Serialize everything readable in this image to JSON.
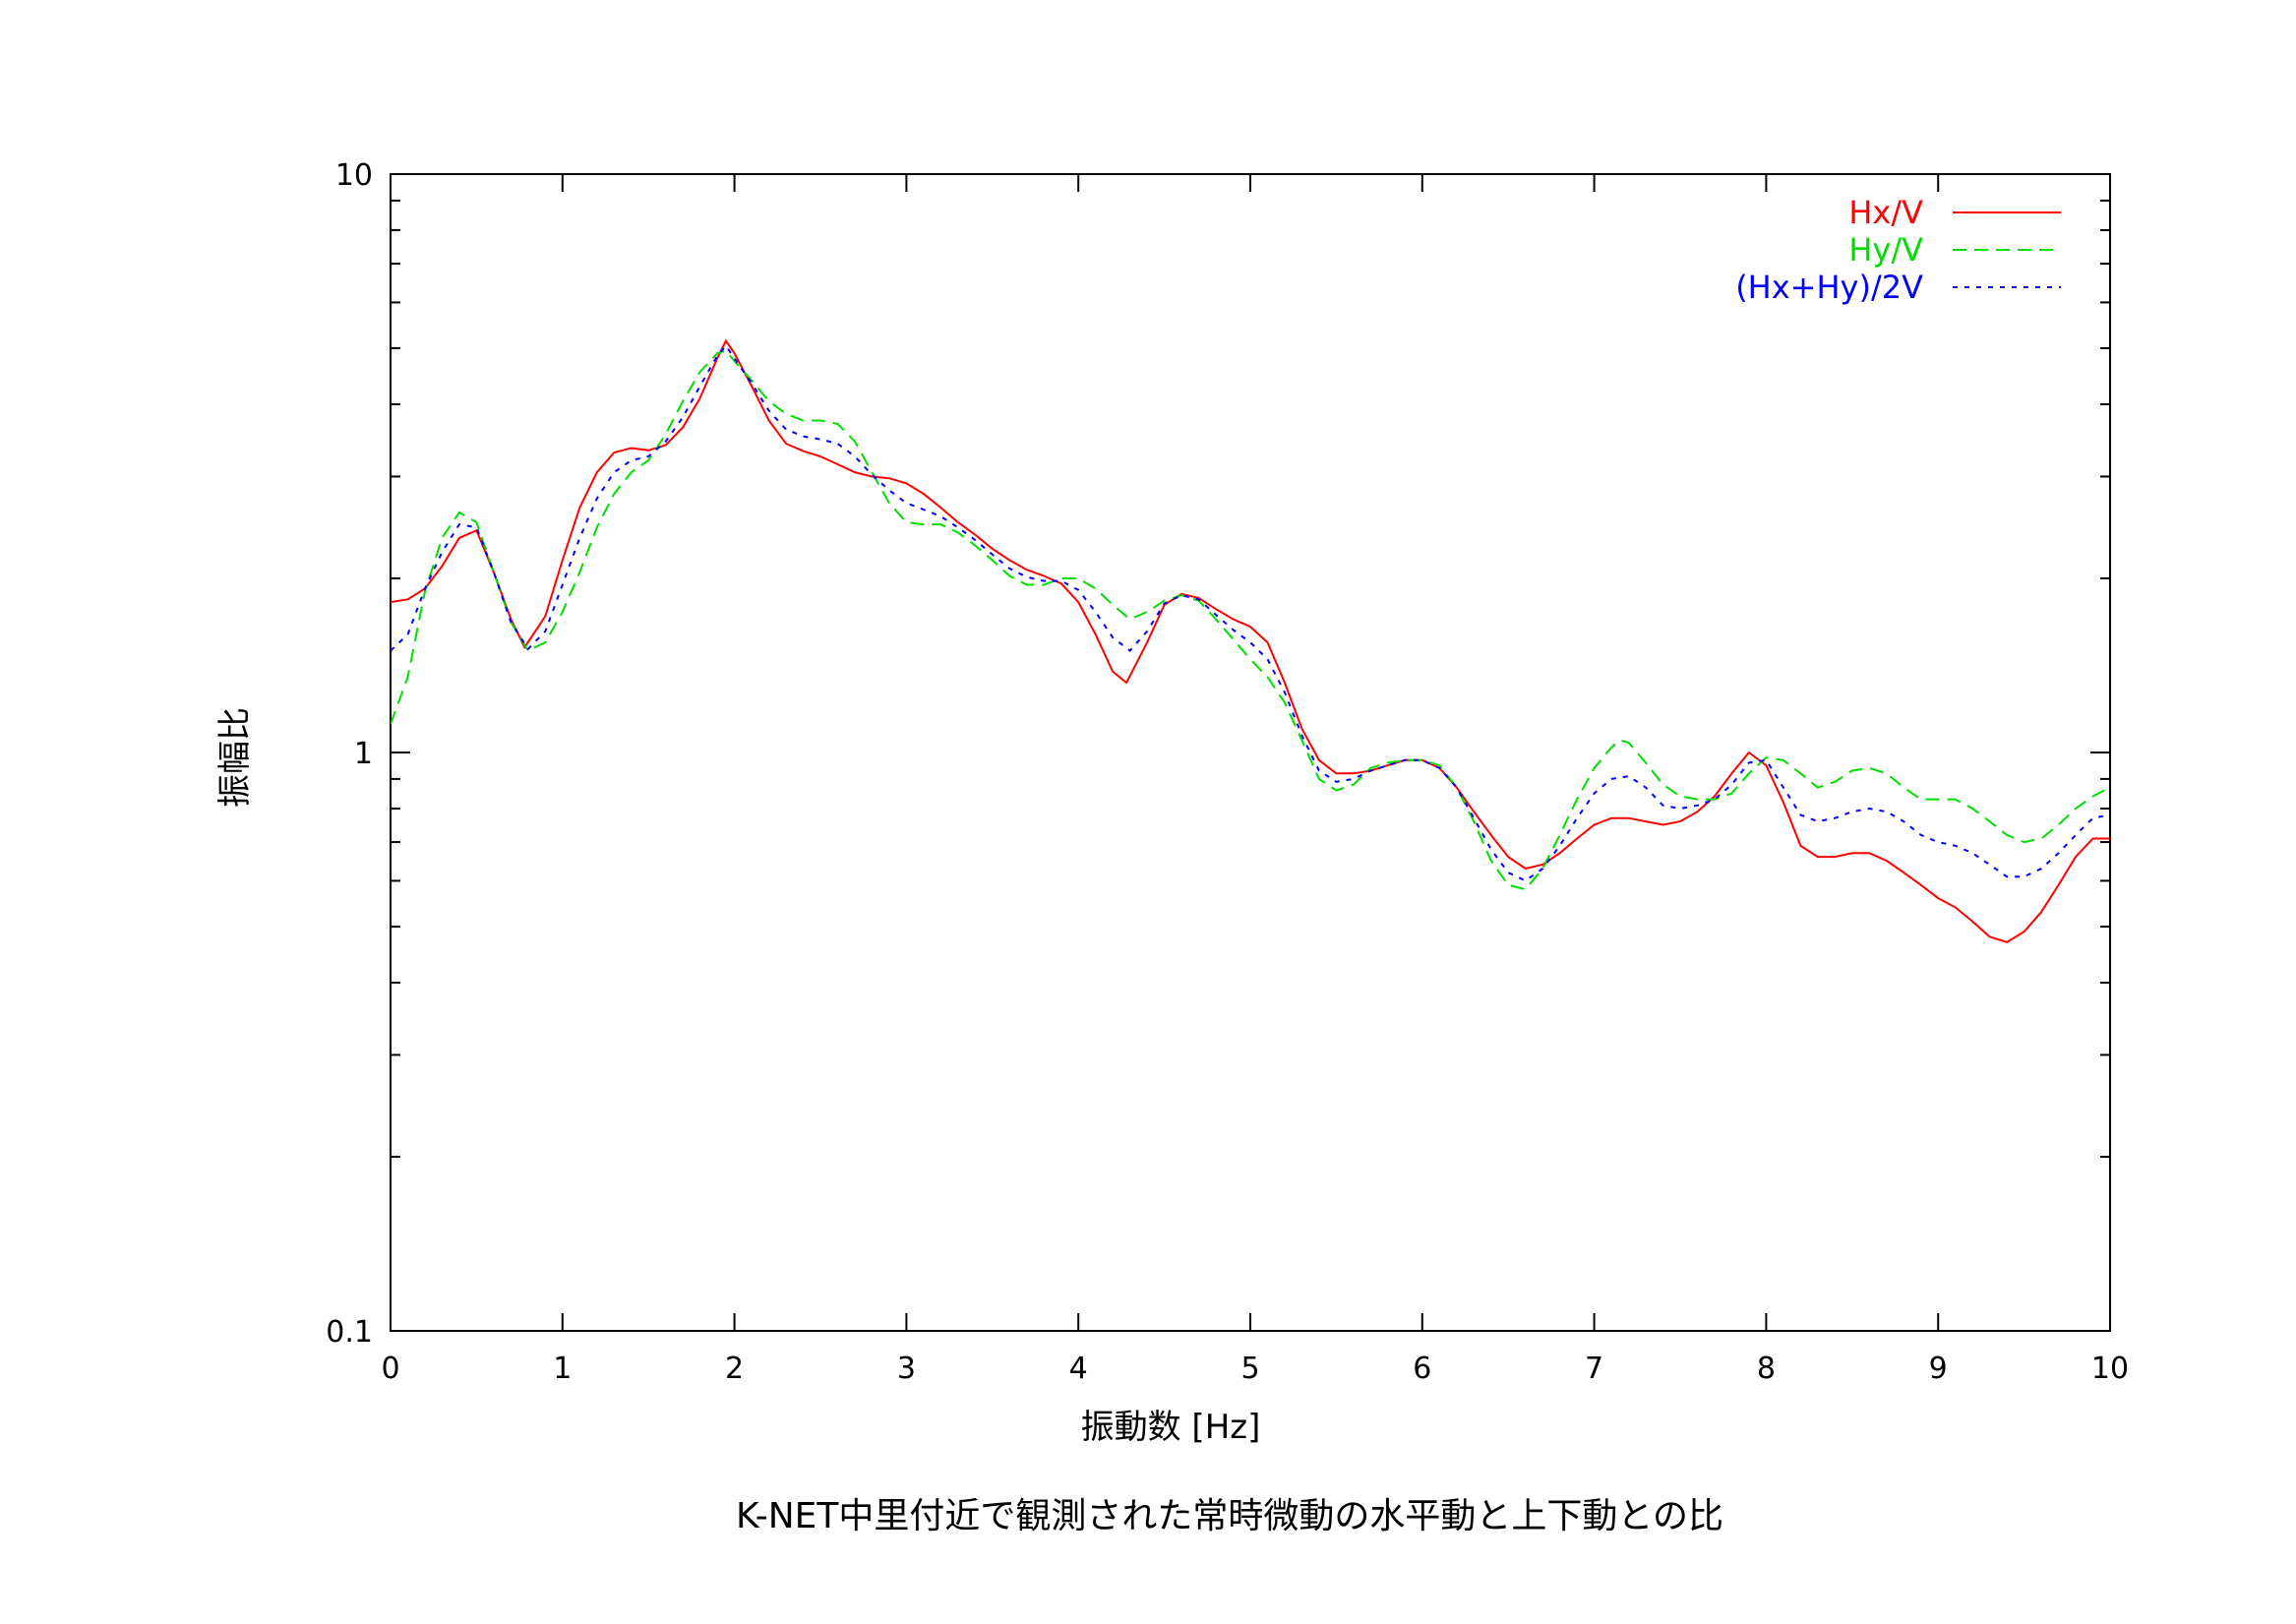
{
  "chart_data": {
    "type": "line",
    "title": "",
    "caption": "K-NET中里付近で観測された常時微動の水平動と上下動との比",
    "xlabel": "振動数 [Hz]",
    "ylabel": "振幅比",
    "xlim": [
      0,
      10
    ],
    "ylim": [
      0.1,
      10
    ],
    "yscale": "log",
    "grid": false,
    "legend_position": "top-right",
    "x_ticks": [
      "0",
      "1",
      "2",
      "3",
      "4",
      "5",
      "6",
      "7",
      "8",
      "9",
      "10"
    ],
    "y_ticks": [
      "0.1",
      "1",
      "10"
    ],
    "series": [
      {
        "name": "Hx/V",
        "color": "#ff0000",
        "dash": "solid",
        "x": [
          0.0,
          0.1,
          0.2,
          0.3,
          0.4,
          0.5,
          0.6,
          0.7,
          0.78,
          0.9,
          1.0,
          1.1,
          1.2,
          1.3,
          1.4,
          1.5,
          1.6,
          1.7,
          1.8,
          1.9,
          1.95,
          2.0,
          2.1,
          2.2,
          2.3,
          2.4,
          2.5,
          2.6,
          2.7,
          2.8,
          2.9,
          3.0,
          3.1,
          3.2,
          3.3,
          3.4,
          3.5,
          3.6,
          3.7,
          3.8,
          3.9,
          4.0,
          4.1,
          4.2,
          4.28,
          4.4,
          4.5,
          4.6,
          4.7,
          4.8,
          4.9,
          5.0,
          5.1,
          5.2,
          5.3,
          5.4,
          5.5,
          5.6,
          5.7,
          5.8,
          5.9,
          6.0,
          6.1,
          6.2,
          6.3,
          6.4,
          6.5,
          6.6,
          6.7,
          6.8,
          6.9,
          7.0,
          7.1,
          7.2,
          7.3,
          7.4,
          7.5,
          7.6,
          7.7,
          7.8,
          7.9,
          8.0,
          8.1,
          8.2,
          8.3,
          8.4,
          8.5,
          8.6,
          8.7,
          8.8,
          8.9,
          9.0,
          9.1,
          9.2,
          9.3,
          9.4,
          9.5,
          9.6,
          9.7,
          9.8,
          9.9,
          10.0
        ],
        "y": [
          1.82,
          1.84,
          1.92,
          2.1,
          2.35,
          2.42,
          2.05,
          1.7,
          1.52,
          1.72,
          2.15,
          2.65,
          3.05,
          3.3,
          3.36,
          3.33,
          3.4,
          3.65,
          4.1,
          4.8,
          5.15,
          4.9,
          4.3,
          3.75,
          3.42,
          3.32,
          3.25,
          3.15,
          3.05,
          3.0,
          2.98,
          2.92,
          2.8,
          2.65,
          2.5,
          2.38,
          2.25,
          2.15,
          2.07,
          2.02,
          1.96,
          1.82,
          1.6,
          1.38,
          1.32,
          1.55,
          1.8,
          1.88,
          1.85,
          1.77,
          1.7,
          1.65,
          1.55,
          1.32,
          1.1,
          0.97,
          0.92,
          0.92,
          0.93,
          0.95,
          0.97,
          0.97,
          0.94,
          0.87,
          0.79,
          0.72,
          0.66,
          0.63,
          0.64,
          0.67,
          0.71,
          0.75,
          0.77,
          0.77,
          0.76,
          0.75,
          0.76,
          0.79,
          0.84,
          0.92,
          1.0,
          0.95,
          0.82,
          0.69,
          0.66,
          0.66,
          0.67,
          0.67,
          0.65,
          0.62,
          0.59,
          0.56,
          0.54,
          0.51,
          0.48,
          0.47,
          0.49,
          0.53,
          0.59,
          0.66,
          0.71,
          0.71
        ]
      },
      {
        "name": "Hy/V",
        "color": "#00dd00",
        "dash": "dashed",
        "x": [
          0.0,
          0.1,
          0.2,
          0.3,
          0.4,
          0.5,
          0.6,
          0.7,
          0.8,
          0.9,
          1.0,
          1.1,
          1.2,
          1.3,
          1.4,
          1.5,
          1.6,
          1.7,
          1.8,
          1.9,
          1.95,
          2.0,
          2.1,
          2.2,
          2.3,
          2.4,
          2.5,
          2.6,
          2.7,
          2.8,
          2.9,
          3.0,
          3.1,
          3.2,
          3.3,
          3.4,
          3.5,
          3.6,
          3.7,
          3.8,
          3.9,
          4.0,
          4.1,
          4.2,
          4.3,
          4.4,
          4.5,
          4.6,
          4.7,
          4.8,
          4.9,
          5.0,
          5.1,
          5.2,
          5.3,
          5.4,
          5.5,
          5.6,
          5.7,
          5.8,
          5.9,
          6.0,
          6.1,
          6.2,
          6.3,
          6.4,
          6.5,
          6.6,
          6.7,
          6.8,
          6.9,
          7.0,
          7.1,
          7.15,
          7.2,
          7.3,
          7.4,
          7.5,
          7.6,
          7.7,
          7.8,
          7.9,
          8.0,
          8.1,
          8.2,
          8.3,
          8.4,
          8.5,
          8.6,
          8.7,
          8.8,
          8.9,
          9.0,
          9.1,
          9.2,
          9.3,
          9.4,
          9.5,
          9.6,
          9.7,
          9.8,
          9.9,
          10.0
        ],
        "y": [
          1.12,
          1.35,
          1.9,
          2.35,
          2.6,
          2.5,
          2.05,
          1.68,
          1.5,
          1.55,
          1.75,
          2.05,
          2.45,
          2.8,
          3.05,
          3.2,
          3.55,
          4.05,
          4.55,
          4.9,
          4.95,
          4.75,
          4.4,
          4.05,
          3.85,
          3.75,
          3.75,
          3.7,
          3.45,
          3.05,
          2.7,
          2.5,
          2.48,
          2.48,
          2.4,
          2.28,
          2.15,
          2.02,
          1.95,
          1.95,
          2.0,
          2.0,
          1.92,
          1.8,
          1.7,
          1.75,
          1.83,
          1.87,
          1.83,
          1.7,
          1.57,
          1.45,
          1.35,
          1.22,
          1.05,
          0.9,
          0.86,
          0.88,
          0.94,
          0.96,
          0.97,
          0.97,
          0.95,
          0.87,
          0.76,
          0.65,
          0.59,
          0.58,
          0.63,
          0.72,
          0.83,
          0.94,
          1.02,
          1.05,
          1.04,
          0.96,
          0.88,
          0.84,
          0.83,
          0.83,
          0.85,
          0.92,
          0.98,
          0.97,
          0.92,
          0.87,
          0.89,
          0.93,
          0.94,
          0.92,
          0.87,
          0.83,
          0.83,
          0.83,
          0.8,
          0.76,
          0.72,
          0.7,
          0.71,
          0.75,
          0.8,
          0.84,
          0.87
        ]
      },
      {
        "name": "(Hx+Hy)/2V",
        "color": "#0000ff",
        "dash": "dotted",
        "x": [
          0.0,
          0.1,
          0.2,
          0.3,
          0.4,
          0.5,
          0.6,
          0.7,
          0.8,
          0.9,
          1.0,
          1.1,
          1.2,
          1.3,
          1.4,
          1.5,
          1.6,
          1.7,
          1.8,
          1.9,
          1.95,
          2.0,
          2.1,
          2.2,
          2.3,
          2.4,
          2.5,
          2.6,
          2.7,
          2.8,
          2.9,
          3.0,
          3.1,
          3.2,
          3.3,
          3.4,
          3.5,
          3.6,
          3.7,
          3.8,
          3.9,
          4.0,
          4.1,
          4.2,
          4.3,
          4.4,
          4.5,
          4.6,
          4.7,
          4.8,
          4.9,
          5.0,
          5.1,
          5.2,
          5.3,
          5.4,
          5.5,
          5.6,
          5.7,
          5.8,
          5.9,
          6.0,
          6.1,
          6.2,
          6.3,
          6.4,
          6.5,
          6.6,
          6.7,
          6.8,
          6.9,
          7.0,
          7.1,
          7.2,
          7.3,
          7.4,
          7.5,
          7.6,
          7.7,
          7.8,
          7.9,
          8.0,
          8.1,
          8.2,
          8.3,
          8.4,
          8.5,
          8.6,
          8.7,
          8.8,
          8.9,
          9.0,
          9.1,
          9.2,
          9.3,
          9.4,
          9.5,
          9.6,
          9.7,
          9.8,
          9.9,
          10.0
        ],
        "y": [
          1.5,
          1.6,
          1.92,
          2.22,
          2.48,
          2.45,
          2.05,
          1.68,
          1.51,
          1.62,
          1.95,
          2.35,
          2.75,
          3.05,
          3.2,
          3.25,
          3.45,
          3.8,
          4.3,
          4.85,
          5.05,
          4.8,
          4.35,
          3.9,
          3.62,
          3.52,
          3.48,
          3.42,
          3.25,
          3.02,
          2.84,
          2.7,
          2.63,
          2.56,
          2.45,
          2.33,
          2.2,
          2.08,
          2.01,
          1.98,
          1.98,
          1.91,
          1.75,
          1.58,
          1.5,
          1.62,
          1.81,
          1.87,
          1.84,
          1.73,
          1.63,
          1.55,
          1.45,
          1.27,
          1.07,
          0.93,
          0.89,
          0.9,
          0.93,
          0.95,
          0.97,
          0.97,
          0.94,
          0.87,
          0.77,
          0.68,
          0.62,
          0.6,
          0.63,
          0.69,
          0.77,
          0.85,
          0.9,
          0.91,
          0.87,
          0.81,
          0.8,
          0.81,
          0.83,
          0.88,
          0.96,
          0.97,
          0.87,
          0.78,
          0.76,
          0.77,
          0.79,
          0.8,
          0.79,
          0.76,
          0.72,
          0.7,
          0.69,
          0.67,
          0.64,
          0.61,
          0.61,
          0.63,
          0.67,
          0.72,
          0.77,
          0.78
        ]
      }
    ]
  }
}
